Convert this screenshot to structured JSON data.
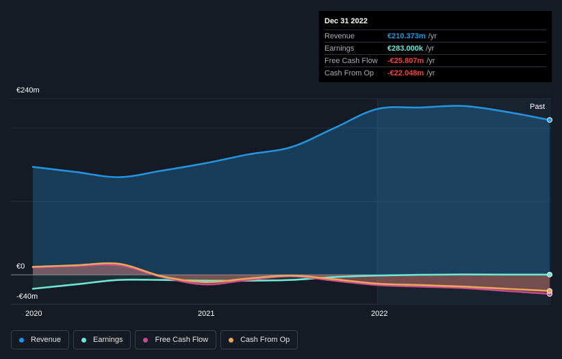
{
  "tooltip": {
    "date": "Dec 31 2022",
    "rows": [
      {
        "label": "Revenue",
        "value": "€210.373m",
        "unit": "/yr",
        "color": "#2394df"
      },
      {
        "label": "Earnings",
        "value": "€283.000k",
        "unit": "/yr",
        "color": "#6ee7d4"
      },
      {
        "label": "Free Cash Flow",
        "value": "-€25.807m",
        "unit": "/yr",
        "color": "#ef4444"
      },
      {
        "label": "Cash From Op",
        "value": "-€22.048m",
        "unit": "/yr",
        "color": "#ef4444"
      }
    ]
  },
  "past_label": "Past",
  "legend": [
    {
      "label": "Revenue",
      "color": "#2394df"
    },
    {
      "label": "Earnings",
      "color": "#6ee7d4"
    },
    {
      "label": "Free Cash Flow",
      "color": "#c84b8b"
    },
    {
      "label": "Cash From Op",
      "color": "#eaa75a"
    }
  ],
  "chart_data": {
    "type": "line",
    "title": "",
    "xlabel": "",
    "ylabel": "",
    "currency_unit": "€m",
    "ylim": [
      -40,
      240
    ],
    "y_tick_labels": [
      {
        "value": 240,
        "label": "€240m"
      },
      {
        "value": 0,
        "label": "€0"
      },
      {
        "value": -40,
        "label": "-€40m"
      }
    ],
    "x_tick_labels": [
      {
        "value": 2020.0,
        "label": "2020"
      },
      {
        "value": 2021.0,
        "label": "2021"
      },
      {
        "value": 2022.0,
        "label": "2022"
      }
    ],
    "x_range": [
      2019.9,
      2023.0
    ],
    "highlight_x": 2022.0,
    "series": [
      {
        "name": "Revenue",
        "color": "#2394df",
        "x": [
          2020.0,
          2020.25,
          2020.5,
          2020.75,
          2021.0,
          2021.25,
          2021.5,
          2021.75,
          2022.0,
          2022.25,
          2022.5,
          2022.75,
          2023.0
        ],
        "values": [
          147,
          140,
          133,
          142,
          152,
          164,
          174,
          200,
          226,
          228,
          230,
          222,
          211
        ]
      },
      {
        "name": "Earnings",
        "color": "#6ee7d4",
        "x": [
          2020.0,
          2020.25,
          2020.5,
          2020.75,
          2021.0,
          2021.25,
          2021.5,
          2021.75,
          2022.0,
          2022.25,
          2022.5,
          2022.75,
          2023.0
        ],
        "values": [
          -19,
          -13,
          -7,
          -7,
          -8,
          -8,
          -7,
          -3,
          -1,
          0,
          0.5,
          0.3,
          0.3
        ]
      },
      {
        "name": "Free Cash Flow",
        "color": "#c84b8b",
        "x": [
          2020.0,
          2020.25,
          2020.5,
          2020.75,
          2021.0,
          2021.25,
          2021.5,
          2021.75,
          2022.0,
          2022.25,
          2022.5,
          2022.75,
          2023.0
        ],
        "values": [
          10,
          12,
          13,
          -3,
          -13,
          -7,
          -2,
          -8,
          -14,
          -16,
          -18,
          -22,
          -26
        ]
      },
      {
        "name": "Cash From Op",
        "color": "#eaa75a",
        "x": [
          2020.0,
          2020.25,
          2020.5,
          2020.75,
          2021.0,
          2021.25,
          2021.5,
          2021.75,
          2022.0,
          2022.25,
          2022.5,
          2022.75,
          2023.0
        ],
        "values": [
          11,
          13,
          15,
          -2,
          -10,
          -5,
          -1,
          -6,
          -12,
          -14,
          -16,
          -19,
          -22
        ]
      }
    ]
  }
}
